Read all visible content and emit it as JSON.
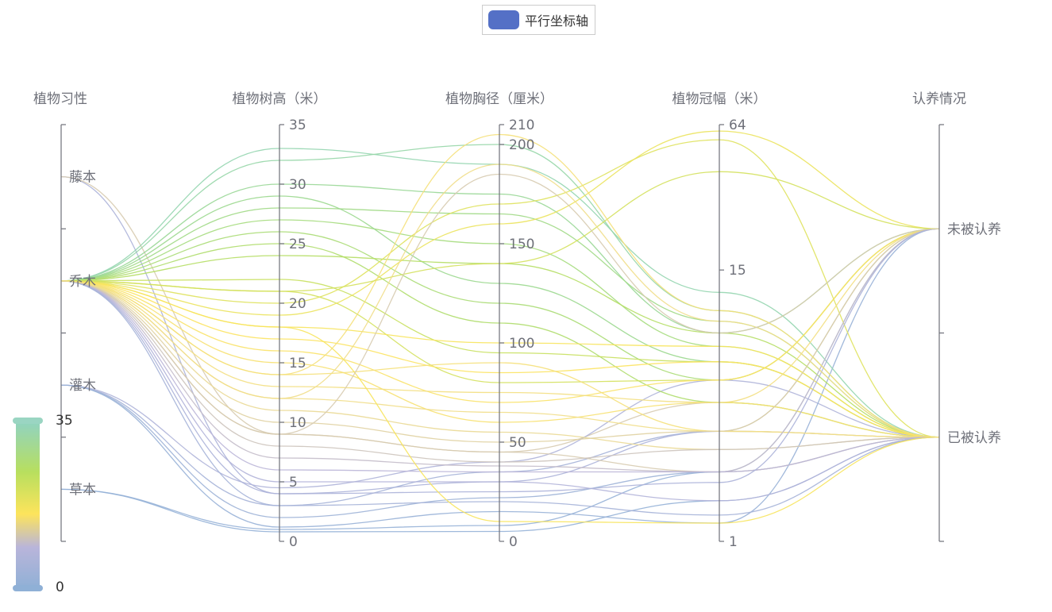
{
  "legend": {
    "label": "平行坐标轴",
    "color": "#5470c6"
  },
  "chart_data": {
    "type": "parallel",
    "series_name": "平行坐标轴",
    "axes": [
      {
        "name": "植物习性",
        "type": "category",
        "categories": [
          "藤本",
          "乔木",
          "灌木",
          "草本"
        ]
      },
      {
        "name": "植物树高（米）",
        "type": "value",
        "min": 0,
        "max": 35,
        "ticks": [
          0,
          5,
          10,
          15,
          20,
          25,
          30,
          35
        ]
      },
      {
        "name": "植物胸径（厘米）",
        "type": "value",
        "min": 0,
        "max": 210,
        "ticks": [
          0,
          50,
          100,
          150,
          200,
          210
        ]
      },
      {
        "name": "植物冠幅（米）",
        "type": "log",
        "min": 1,
        "max": 64,
        "ticks": [
          1,
          15,
          64
        ]
      },
      {
        "name": "认养情况",
        "type": "category",
        "categories": [
          "未被认养",
          "已被认养"
        ]
      }
    ],
    "visual_map": {
      "dimension": "植物树高（米）",
      "min": 0,
      "max": 35,
      "colors": [
        "#8fb0d6",
        "#b9b5da",
        "#f0de8c",
        "#fde45c",
        "#b8df5e",
        "#9ad88f",
        "#91d3c0"
      ]
    },
    "samples": [
      [
        "藤本",
        4,
        30,
        3,
        "已被认养"
      ],
      [
        "藤本",
        9,
        45,
        4,
        "已被认养"
      ],
      [
        "草本",
        1,
        8,
        2,
        "未被认养"
      ],
      [
        "草本",
        0.8,
        5,
        1.5,
        "已被认养"
      ],
      [
        "灌木",
        2,
        22,
        2,
        "已被认养"
      ],
      [
        "灌木",
        3,
        35,
        3,
        "未被认养"
      ],
      [
        "灌木",
        4.5,
        40,
        5,
        "已被认养"
      ],
      [
        "灌木",
        1.2,
        15,
        1.2,
        "未被认养"
      ],
      [
        "乔木",
        33,
        190,
        12,
        "已被认养"
      ],
      [
        "乔木",
        32,
        200,
        10,
        "已被认养"
      ],
      [
        "乔木",
        30,
        175,
        8,
        "未被认养"
      ],
      [
        "乔木",
        28,
        165,
        9,
        "已被认养"
      ],
      [
        "乔木",
        27,
        150,
        7,
        "已被认养"
      ],
      [
        "乔木",
        29,
        130,
        6,
        "已被认养"
      ],
      [
        "乔木",
        26,
        120,
        5,
        "未被认养"
      ],
      [
        "乔木",
        25,
        110,
        4,
        "已被认养"
      ],
      [
        "乔木",
        24,
        140,
        8,
        "已被认养"
      ],
      [
        "乔木",
        22,
        95,
        6,
        "已被认养"
      ],
      [
        "乔木",
        21,
        80,
        5,
        "未被认养"
      ],
      [
        "乔木",
        20,
        170,
        55,
        "已被认养"
      ],
      [
        "乔木",
        19,
        160,
        60,
        "未被认养"
      ],
      [
        "乔木",
        18,
        100,
        7,
        "已被认养"
      ],
      [
        "乔木",
        17,
        85,
        6,
        "已被认养"
      ],
      [
        "乔木",
        16,
        70,
        5,
        "未被认养"
      ],
      [
        "乔木",
        15,
        60,
        4,
        "已被认养"
      ],
      [
        "乔木",
        14,
        90,
        3,
        "已被认养"
      ],
      [
        "乔木",
        13,
        75,
        4,
        "未被认养"
      ],
      [
        "乔木",
        12,
        65,
        3,
        "已被认养"
      ],
      [
        "乔木",
        11,
        55,
        2.5,
        "已被认养"
      ],
      [
        "乔木",
        10,
        50,
        3,
        "未被认养"
      ],
      [
        "乔木",
        9,
        45,
        2,
        "已被认养"
      ],
      [
        "乔木",
        8,
        40,
        2.5,
        "已被认养"
      ],
      [
        "乔木",
        7,
        38,
        2,
        "未被认养"
      ],
      [
        "乔木",
        6,
        35,
        2,
        "已被认养"
      ],
      [
        "乔木",
        5,
        30,
        1.5,
        "已被认养"
      ],
      [
        "乔木",
        4,
        25,
        1.8,
        "未被认养"
      ],
      [
        "乔木",
        3,
        20,
        1.3,
        "已被认养"
      ],
      [
        "乔木",
        18,
        10,
        1.2,
        "已被认养"
      ],
      [
        "乔木",
        21,
        140,
        40,
        "未被认养"
      ],
      [
        "乔木",
        12,
        190,
        9,
        "已被认养"
      ],
      [
        "乔木",
        9,
        185,
        8,
        "未被认养"
      ],
      [
        "乔木",
        14,
        205,
        10,
        "已被认养"
      ]
    ]
  },
  "visual_map": {
    "max_label": "35",
    "min_label": "0"
  }
}
